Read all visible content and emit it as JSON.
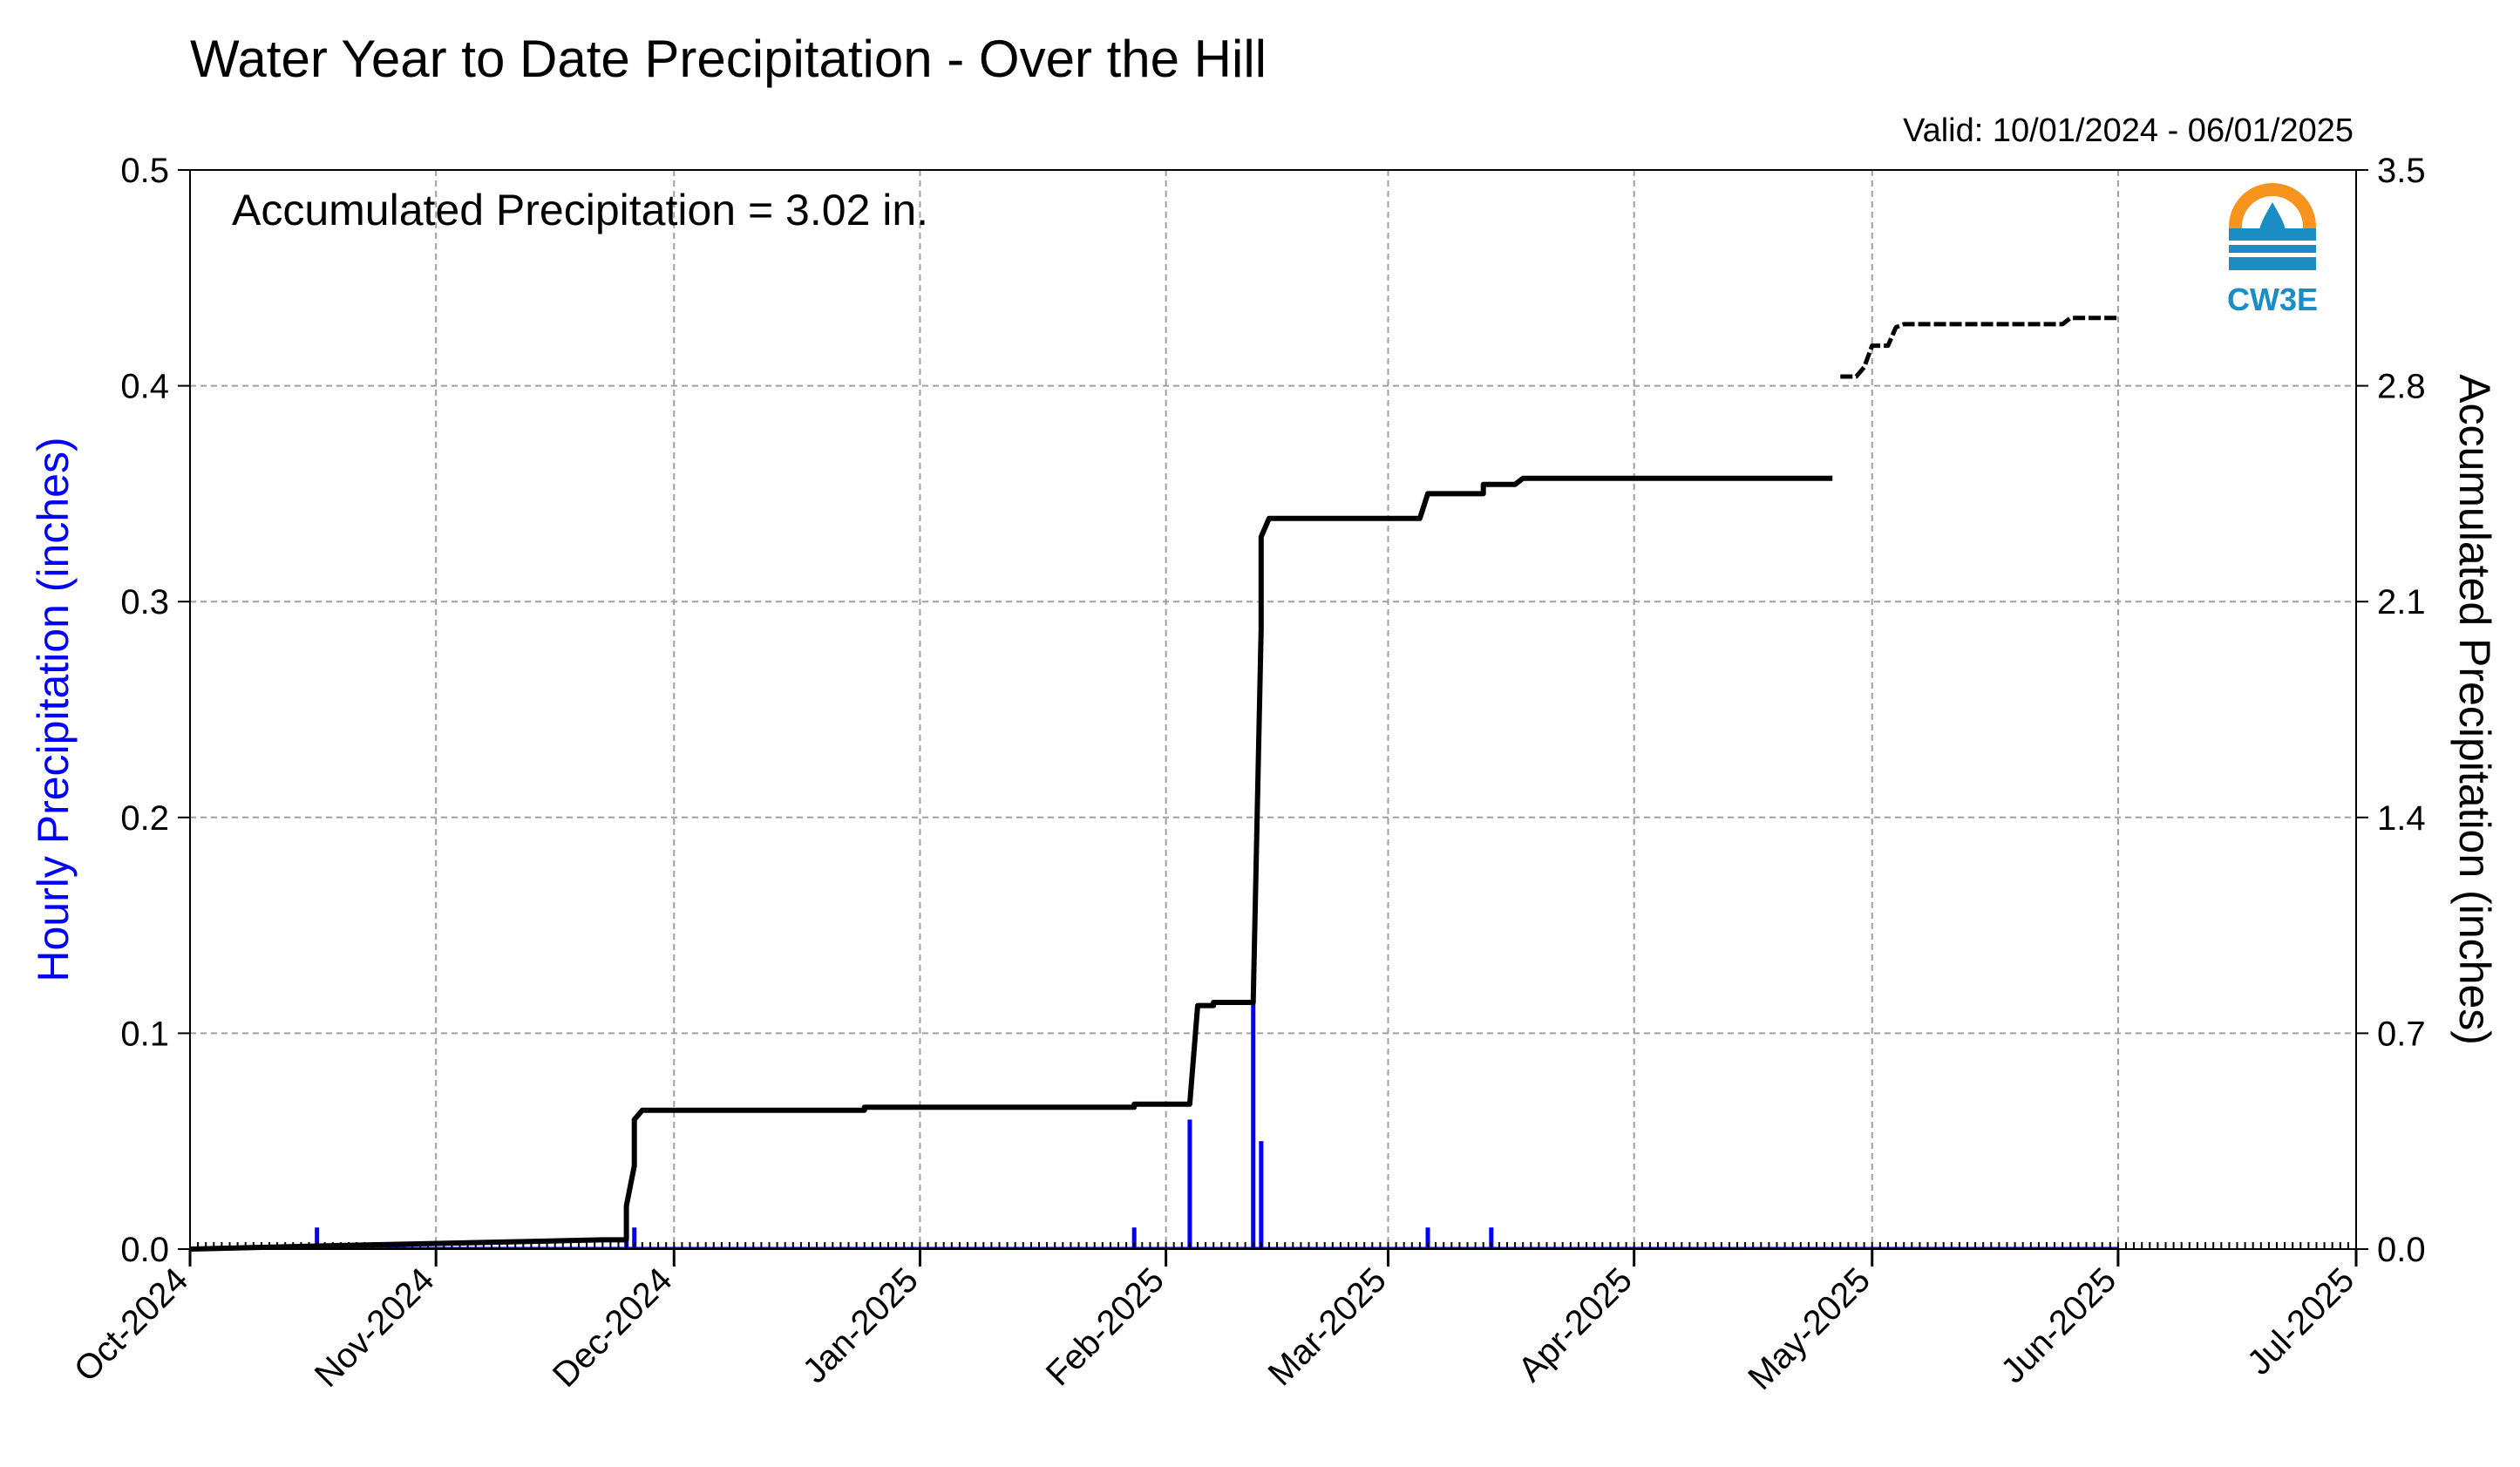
{
  "chart_data": {
    "type": "bar+line",
    "title": "Water Year to Date Precipitation - Over the Hill",
    "valid_label": "Valid: 10/01/2024 - 06/01/2025",
    "annotation": "Accumulated Precipitation = 3.02 in.",
    "ylabel_left": "Hourly Precipitation (inches)",
    "ylabel_right": "Accumulated Precipitation (inches)",
    "colors": {
      "hourly": "#0000ff",
      "accumulated": "#000000",
      "grid": "#a0a0a0",
      "left_label": "#0000ff"
    },
    "xlim": [
      "2024-10-01",
      "2025-07-01"
    ],
    "ylim_left": [
      0,
      0.5
    ],
    "ylim_right": [
      0,
      3.5
    ],
    "left_ticks": [
      "0.0",
      "0.1",
      "0.2",
      "0.3",
      "0.4",
      "0.5"
    ],
    "right_ticks": [
      "0.0",
      "0.7",
      "1.4",
      "2.1",
      "2.8",
      "3.5"
    ],
    "x_ticks": [
      "Oct-2024",
      "Nov-2024",
      "Dec-2024",
      "Jan-2025",
      "Feb-2025",
      "Mar-2025",
      "Apr-2025",
      "May-2025",
      "Jun-2025",
      "Jul-2025"
    ],
    "x_tick_dates": [
      "2024-10-01",
      "2024-11-01",
      "2024-12-01",
      "2025-01-01",
      "2025-02-01",
      "2025-03-01",
      "2025-04-01",
      "2025-05-01",
      "2025-06-01",
      "2025-07-01"
    ],
    "grid": true,
    "series": [
      {
        "name": "Hourly Precipitation",
        "axis": "left",
        "style": "bar",
        "points": [
          [
            "2024-10-17",
            0.01
          ],
          [
            "2024-11-25",
            0.02
          ],
          [
            "2024-11-26",
            0.01
          ],
          [
            "2025-01-28",
            0.01
          ],
          [
            "2025-02-04",
            0.06
          ],
          [
            "2025-02-12",
            0.12
          ],
          [
            "2025-02-13",
            0.05
          ],
          [
            "2025-03-06",
            0.01
          ],
          [
            "2025-03-14",
            0.01
          ]
        ]
      },
      {
        "name": "Accumulated Precipitation",
        "axis": "right",
        "style": "step-line",
        "segments": [
          [
            [
              "2024-10-01",
              0.0
            ],
            [
              "2024-10-17",
              0.01
            ],
            [
              "2024-11-22",
              0.03
            ],
            [
              "2024-11-25",
              0.03
            ],
            [
              "2024-11-25",
              0.14
            ],
            [
              "2024-11-26",
              0.27
            ],
            [
              "2024-11-26",
              0.42
            ],
            [
              "2024-11-27",
              0.45
            ],
            [
              "2024-12-25",
              0.45
            ],
            [
              "2024-12-25",
              0.46
            ],
            [
              "2025-01-28",
              0.46
            ],
            [
              "2025-01-28",
              0.47
            ],
            [
              "2025-02-04",
              0.47
            ],
            [
              "2025-02-05",
              0.79
            ],
            [
              "2025-02-07",
              0.79
            ],
            [
              "2025-02-07",
              0.8
            ],
            [
              "2025-02-12",
              0.8
            ],
            [
              "2025-02-13",
              2.01
            ],
            [
              "2025-02-13",
              2.31
            ],
            [
              "2025-02-14",
              2.37
            ],
            [
              "2025-03-05",
              2.37
            ],
            [
              "2025-03-06",
              2.45
            ],
            [
              "2025-03-13",
              2.45
            ],
            [
              "2025-03-13",
              2.48
            ],
            [
              "2025-03-17",
              2.48
            ],
            [
              "2025-03-18",
              2.5
            ],
            [
              "2025-04-26",
              2.5
            ]
          ],
          [
            [
              "2025-04-27",
              2.83
            ],
            [
              "2025-04-29",
              2.83
            ],
            [
              "2025-04-30",
              2.86
            ],
            [
              "2025-05-01",
              2.93
            ],
            [
              "2025-05-03",
              2.93
            ],
            [
              "2025-05-04",
              2.99
            ],
            [
              "2025-05-05",
              3.0
            ],
            [
              "2025-05-25",
              3.0
            ],
            [
              "2025-05-26",
              3.02
            ],
            [
              "2025-06-01",
              3.02
            ]
          ]
        ]
      }
    ]
  },
  "logo": {
    "label": "CW3E"
  }
}
